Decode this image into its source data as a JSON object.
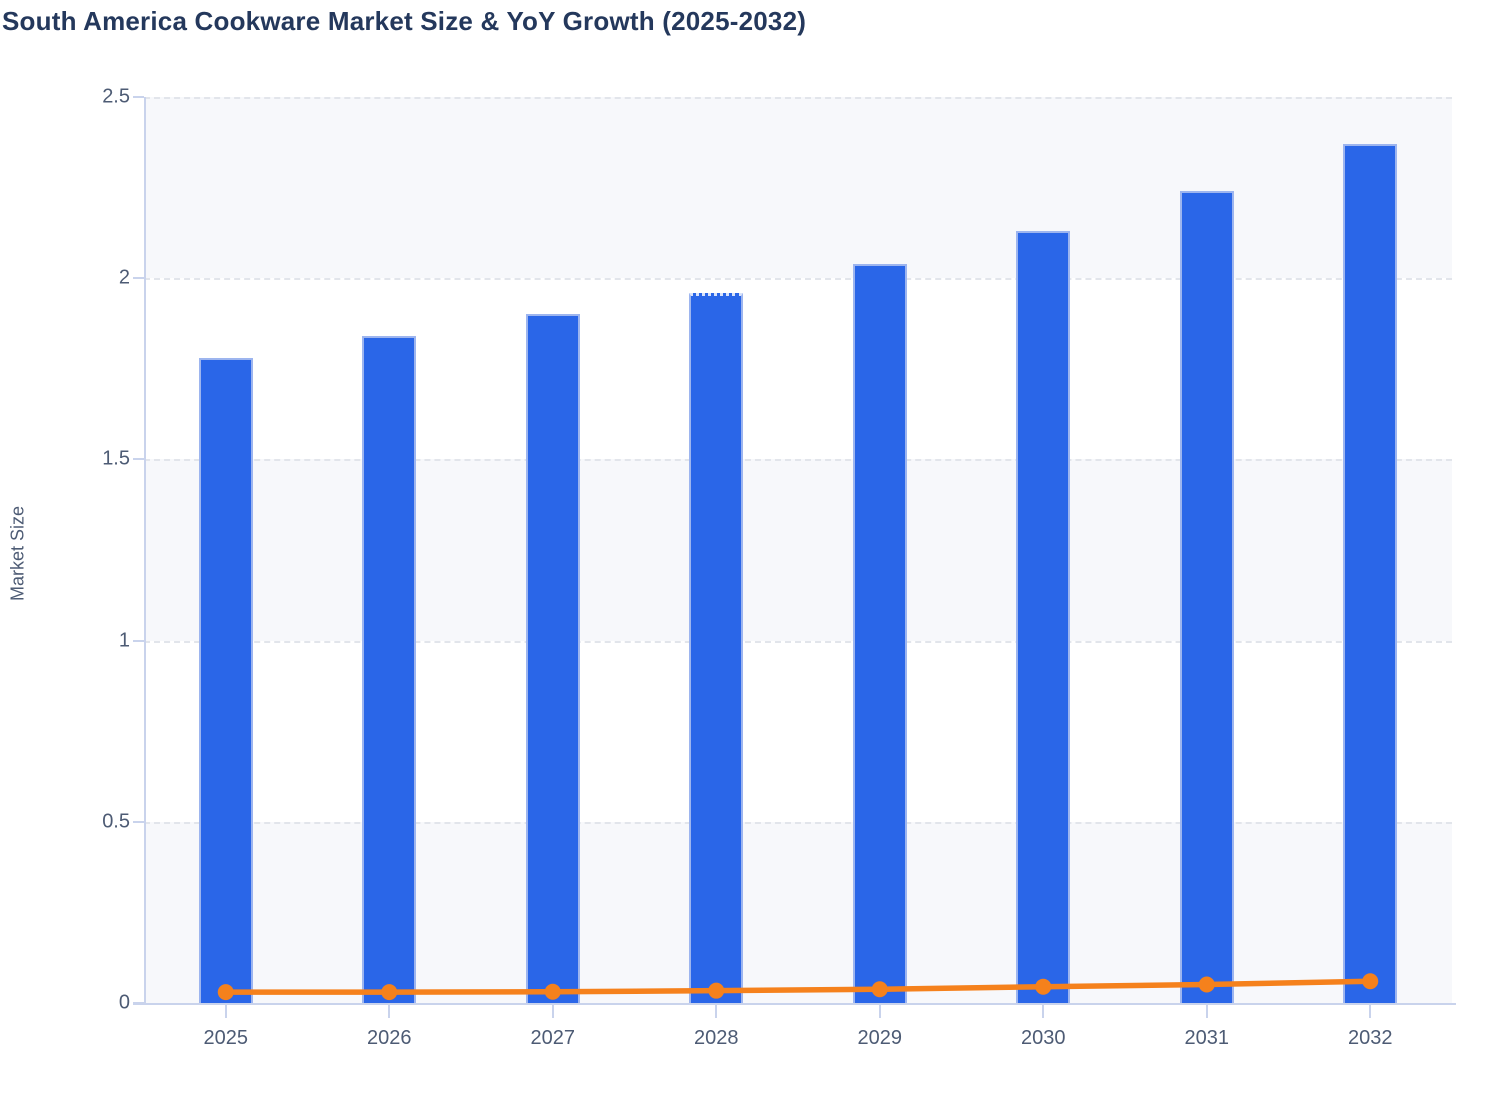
{
  "title": "South America Cookware Market Size & YoY Growth (2025-2032)",
  "chart_data": {
    "type": "bar",
    "subtype": "bar-and-line-combo",
    "title": "South America Cookware Market Size & YoY Growth (2025-2032)",
    "ylabel": "Market Size",
    "xlabel": "",
    "categories": [
      "2025",
      "2026",
      "2027",
      "2028",
      "2029",
      "2030",
      "2031",
      "2032"
    ],
    "series": [
      {
        "name": "Market Size",
        "type": "bar",
        "color": "#2a66e8",
        "values": [
          1.78,
          1.84,
          1.9,
          1.96,
          2.04,
          2.13,
          2.24,
          2.37
        ]
      },
      {
        "name": "YoY Growth",
        "type": "line",
        "color": "#f5811c",
        "values": [
          0.03,
          0.03,
          0.031,
          0.034,
          0.038,
          0.045,
          0.051,
          0.06
        ]
      }
    ],
    "ylim": [
      0,
      2.5
    ],
    "ytick_step": 0.5,
    "yticks": [
      "0",
      "0.5",
      "1",
      "1.5",
      "2",
      "2.5"
    ],
    "grid": "horizontal-dashed",
    "alternating_bands": true,
    "legend_position": "none",
    "dotted_top_category": "2028"
  },
  "colors": {
    "bar_fill": "#2a66e8",
    "bar_edge": "#9db5ef",
    "line": "#f5811c",
    "title_text": "#24385c",
    "axis_text": "#4d5b74",
    "grid_dash": "#e2e5eb",
    "band_gray": "#f7f8fb",
    "axis_line": "#c9d3ec"
  }
}
